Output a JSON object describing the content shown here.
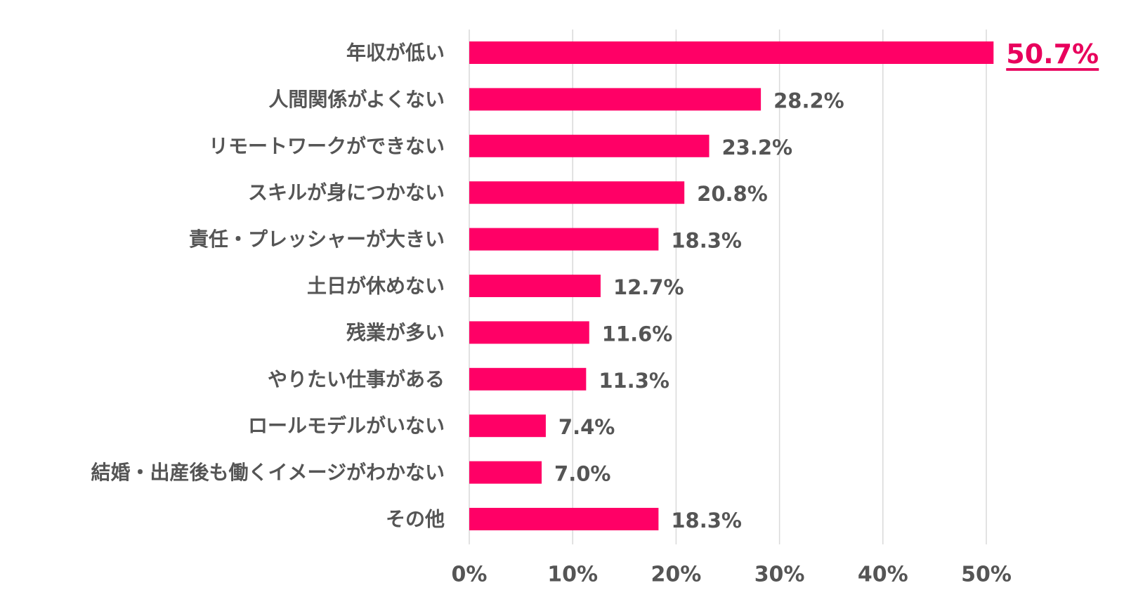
{
  "chart_data": {
    "type": "bar",
    "orientation": "horizontal",
    "title": "",
    "xlabel": "",
    "ylabel": "",
    "categories": [
      "年収が低い",
      "人間関係がよくない",
      "リモートワークができない",
      "スキルが身につかない",
      "責任・プレッシャーが大きい",
      "土日が休めない",
      "残業が多い",
      "やりたい仕事がある",
      "ロールモデルがいない",
      "結婚・出産後も働くイメージがわかない",
      "その他"
    ],
    "values": [
      50.7,
      28.2,
      23.2,
      20.8,
      18.3,
      12.7,
      11.6,
      11.3,
      7.4,
      7.0,
      18.3
    ],
    "value_labels": [
      "50.7%",
      "28.2%",
      "23.2%",
      "20.8%",
      "18.3%",
      "12.7%",
      "11.6%",
      "11.3%",
      "7.4%",
      "7.0%",
      "18.3%"
    ],
    "highlight_index": 0,
    "xlim": [
      0,
      50
    ],
    "xticks": [
      0,
      10,
      20,
      30,
      40,
      50
    ],
    "xtick_labels": [
      "0%",
      "10%",
      "20%",
      "30%",
      "40%",
      "50%"
    ],
    "grid": "vertical",
    "legend": "none",
    "colors": {
      "bar": "#ff0066",
      "highlight_label": "#e8005c",
      "label_text": "#555555",
      "grid": "#d9d9d9"
    }
  }
}
